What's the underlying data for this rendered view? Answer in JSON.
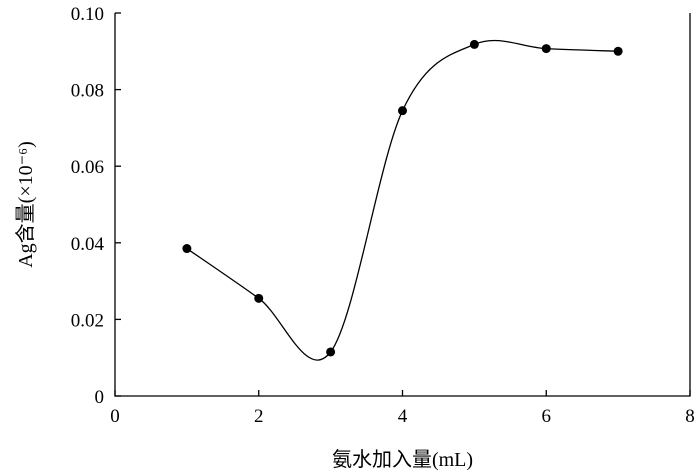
{
  "chart_data": {
    "type": "line",
    "title": "",
    "xlabel": "氨水加入量(mL)",
    "ylabel": "Ag含量(×10⁻⁶)",
    "xlim": [
      0,
      8
    ],
    "ylim": [
      0,
      0.1
    ],
    "x_ticks": [
      {
        "value": 0,
        "label": "0"
      },
      {
        "value": 2,
        "label": "2"
      },
      {
        "value": 4,
        "label": "4"
      },
      {
        "value": 6,
        "label": "6"
      },
      {
        "value": 8,
        "label": "8"
      }
    ],
    "y_ticks": [
      {
        "value": 0,
        "label": "0"
      },
      {
        "value": 0.02,
        "label": "0.02"
      },
      {
        "value": 0.04,
        "label": "0.04"
      },
      {
        "value": 0.06,
        "label": "0.06"
      },
      {
        "value": 0.08,
        "label": "0.08"
      },
      {
        "value": 0.1,
        "label": "0.10"
      }
    ],
    "grid": false,
    "smooth": true,
    "series": [
      {
        "x": [
          1,
          2,
          3,
          4,
          5,
          6,
          7
        ],
        "y": [
          0.0385,
          0.0255,
          0.0115,
          0.0745,
          0.0918,
          0.0907,
          0.09
        ]
      }
    ]
  }
}
